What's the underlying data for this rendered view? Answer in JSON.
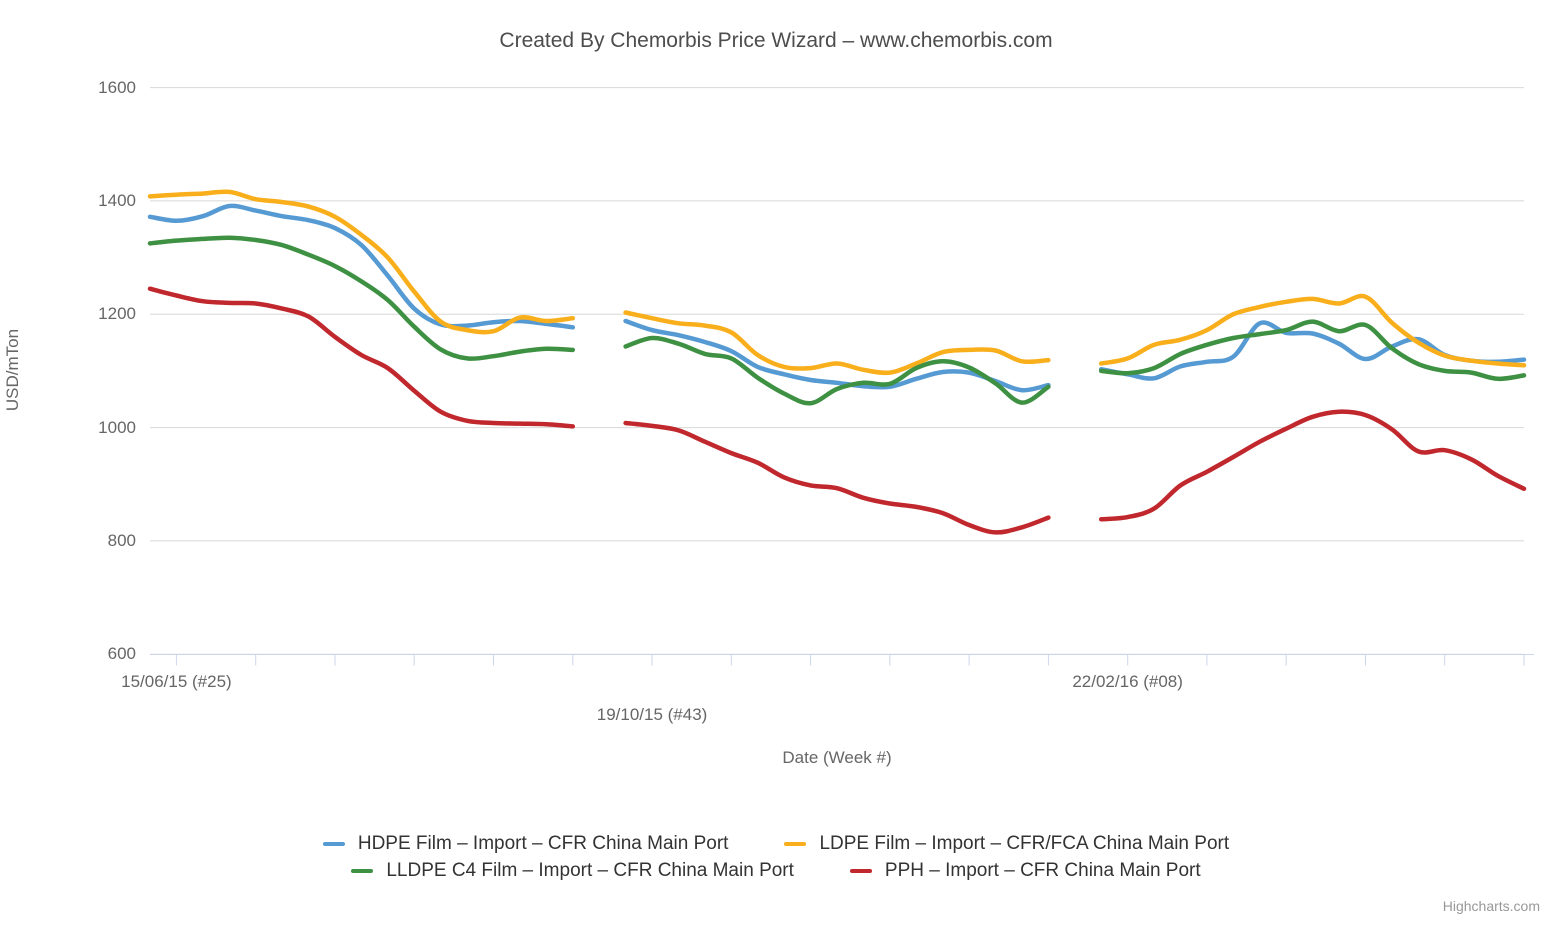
{
  "chart": {
    "title": "Created By Chemorbis Price Wizard – www.chemorbis.com",
    "credits": "Highcharts.com",
    "background_color": "#ffffff",
    "gridline_color": "#d8d8d8",
    "axis_line_color": "#ccd6eb"
  },
  "y_axis": {
    "title": "USD/mTon",
    "min": 600,
    "max": 1600,
    "ticks": [
      600,
      800,
      1000,
      1200,
      1400,
      1600
    ]
  },
  "x_axis": {
    "title": "Date (Week #)",
    "total_weeks": 53,
    "tick_first_week": 1,
    "tick_week_step": 3,
    "labels": [
      {
        "text": "15/06/15 (#25)",
        "week": 1,
        "row": 0
      },
      {
        "text": "19/10/15 (#43)",
        "week": 19,
        "row": 1
      },
      {
        "text": "22/02/16 (#08)",
        "week": 37,
        "row": 0
      }
    ]
  },
  "legend": {
    "rows": [
      [
        0,
        1
      ],
      [
        2,
        3
      ]
    ]
  },
  "chart_data": {
    "type": "line",
    "title": "Created By Chemorbis Price Wizard – www.chemorbis.com",
    "xlabel": "Date (Week #)",
    "ylabel": "USD/mTon",
    "ylim": [
      600,
      1600
    ],
    "x_unit": "weekly points from 15/06/15 (#25) to ~05/16; null = missing week (data gap)",
    "grid": "horizontal",
    "legend_position": "bottom",
    "series": [
      {
        "name": "HDPE Film – Import – CFR China Main Port",
        "color": "#569AD3",
        "values": [
          1372,
          1365,
          1373,
          1391,
          1383,
          1373,
          1366,
          1352,
          1322,
          1268,
          1210,
          1182,
          1180,
          1186,
          1188,
          1183,
          1177,
          null,
          1188,
          1172,
          1163,
          1151,
          1135,
          1107,
          1094,
          1084,
          1079,
          1073,
          1072,
          1086,
          1098,
          1097,
          1082,
          1066,
          1075,
          null,
          1103,
          1094,
          1087,
          1108,
          1116,
          1125,
          1184,
          1167,
          1166,
          1148,
          1121,
          1143,
          1156,
          1128,
          1118,
          1116,
          1120
        ]
      },
      {
        "name": "LDPE Film – Import – CFR/FCA China Main Port",
        "color": "#F9AE1B",
        "values": [
          1408,
          1411,
          1413,
          1416,
          1403,
          1398,
          1390,
          1372,
          1340,
          1300,
          1240,
          1187,
          1172,
          1170,
          1194,
          1188,
          1193,
          null,
          1203,
          1193,
          1184,
          1180,
          1168,
          1128,
          1107,
          1105,
          1113,
          1102,
          1097,
          1113,
          1133,
          1137,
          1136,
          1117,
          1119,
          null,
          1113,
          1122,
          1146,
          1155,
          1172,
          1200,
          1213,
          1222,
          1227,
          1219,
          1231,
          1185,
          1150,
          1127,
          1118,
          1113,
          1110
        ]
      },
      {
        "name": "LLDPE C4 Film – Import – CFR China Main Port",
        "color": "#3E9142",
        "values": [
          1325,
          1330,
          1333,
          1335,
          1331,
          1322,
          1305,
          1285,
          1258,
          1225,
          1178,
          1138,
          1122,
          1126,
          1134,
          1139,
          1137,
          null,
          1143,
          1158,
          1148,
          1130,
          1122,
          1088,
          1060,
          1043,
          1068,
          1079,
          1077,
          1105,
          1117,
          1106,
          1078,
          1044,
          1072,
          null,
          1100,
          1096,
          1105,
          1130,
          1146,
          1158,
          1165,
          1172,
          1187,
          1170,
          1181,
          1140,
          1112,
          1100,
          1097,
          1086,
          1092
        ]
      },
      {
        "name": "PPH – Import – CFR China Main Port",
        "color": "#C1282D",
        "values": [
          1245,
          1233,
          1223,
          1220,
          1219,
          1210,
          1196,
          1160,
          1128,
          1105,
          1065,
          1028,
          1012,
          1008,
          1007,
          1006,
          1002,
          null,
          1008,
          1003,
          995,
          975,
          955,
          938,
          912,
          898,
          893,
          876,
          866,
          860,
          849,
          828,
          815,
          824,
          841,
          null,
          838,
          842,
          857,
          898,
          922,
          948,
          975,
          998,
          1019,
          1028,
          1022,
          997,
          958,
          960,
          944,
          915,
          892
        ]
      }
    ]
  }
}
